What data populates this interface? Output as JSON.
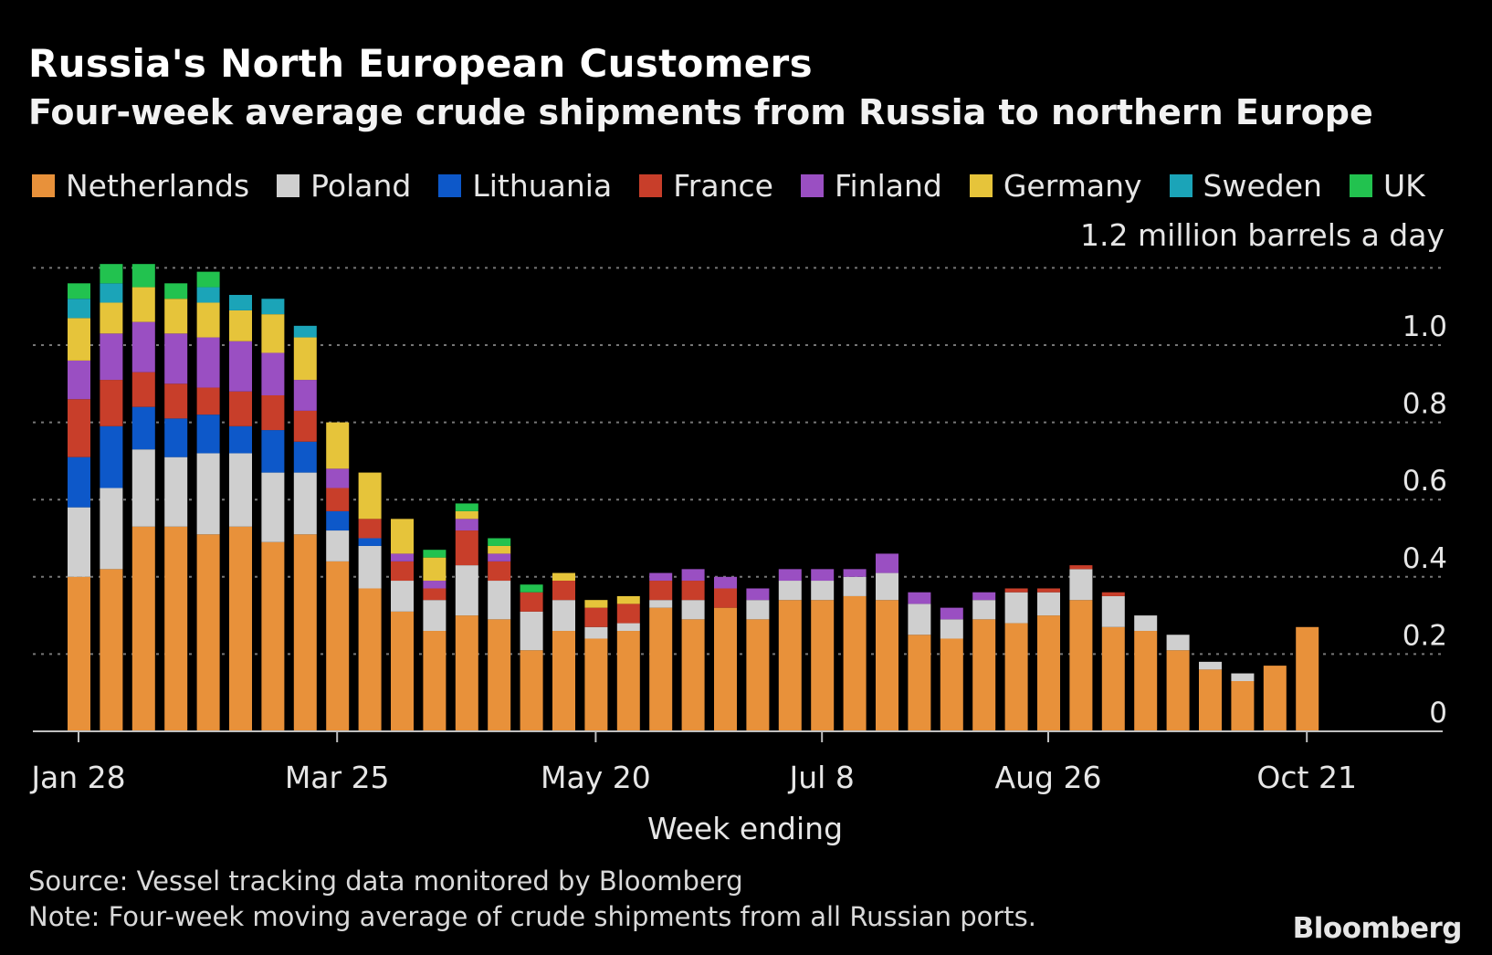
{
  "header": {
    "title": "Russia's North European Customers",
    "subtitle": "Four-week average crude shipments from Russia to northern Europe",
    "unit": "1.2 million barrels a day"
  },
  "legend": [
    {
      "name": "Netherlands",
      "color": "#e8913a"
    },
    {
      "name": "Poland",
      "color": "#cfcfcf"
    },
    {
      "name": "Lithuania",
      "color": "#0d58c9"
    },
    {
      "name": "France",
      "color": "#c83e2a"
    },
    {
      "name": "Finland",
      "color": "#9a4fc2"
    },
    {
      "name": "Germany",
      "color": "#e6c43a"
    },
    {
      "name": "Sweden",
      "color": "#1ba4b8"
    },
    {
      "name": "UK",
      "color": "#22c24f"
    }
  ],
  "footer": {
    "source": "Source: Vessel tracking data monitored by Bloomberg",
    "note": "Note: Four-week moving average of crude shipments from all Russian ports.",
    "logo": "Bloomberg"
  },
  "chart_data": {
    "type": "bar",
    "stacked": true,
    "title": "Russia's North European Customers",
    "subtitle": "Four-week average crude shipments from Russia to northern Europe",
    "xlabel": "Week ending",
    "ylabel": "1.2 million barrels a day",
    "ylim": [
      0,
      1.2
    ],
    "yticks": [
      0,
      0.2,
      0.4,
      0.6,
      0.8,
      1.0
    ],
    "ytick_labels": [
      "0",
      "0.2",
      "0.4",
      "0.6",
      "0.8",
      "1.0"
    ],
    "grid": true,
    "legend_position": "top",
    "x_tick_labels": [
      {
        "label": "Jan 28",
        "index": 0
      },
      {
        "label": "Mar 25",
        "index": 8
      },
      {
        "label": "May 20",
        "index": 16
      },
      {
        "label": "Jul 8",
        "index": 23
      },
      {
        "label": "Aug 26",
        "index": 30
      },
      {
        "label": "Oct 21",
        "index": 38
      }
    ],
    "categories": [
      "1",
      "2",
      "3",
      "4",
      "5",
      "6",
      "7",
      "8",
      "9",
      "10",
      "11",
      "12",
      "13",
      "14",
      "15",
      "16",
      "17",
      "18",
      "19",
      "20",
      "21",
      "22",
      "23",
      "24",
      "25",
      "26",
      "27",
      "28",
      "29",
      "30",
      "31",
      "32",
      "33",
      "34",
      "35",
      "36",
      "37",
      "38",
      "39"
    ],
    "series": [
      {
        "name": "Netherlands",
        "values": [
          0.4,
          0.42,
          0.53,
          0.53,
          0.51,
          0.53,
          0.49,
          0.51,
          0.44,
          0.37,
          0.31,
          0.26,
          0.3,
          0.29,
          0.21,
          0.26,
          0.24,
          0.26,
          0.32,
          0.29,
          0.32,
          0.29,
          0.34,
          0.34,
          0.35,
          0.34,
          0.25,
          0.24,
          0.29,
          0.28,
          0.3,
          0.34,
          0.27,
          0.26,
          0.21,
          0.16,
          0.13,
          0.17,
          0.27
        ]
      },
      {
        "name": "Poland",
        "values": [
          0.18,
          0.21,
          0.2,
          0.18,
          0.21,
          0.19,
          0.18,
          0.16,
          0.08,
          0.11,
          0.08,
          0.08,
          0.13,
          0.1,
          0.1,
          0.08,
          0.03,
          0.02,
          0.02,
          0.05,
          0.0,
          0.05,
          0.05,
          0.05,
          0.05,
          0.07,
          0.08,
          0.05,
          0.05,
          0.08,
          0.06,
          0.08,
          0.08,
          0.04,
          0.04,
          0.02,
          0.02,
          0.0,
          0.0
        ]
      },
      {
        "name": "Lithuania",
        "values": [
          0.13,
          0.16,
          0.11,
          0.1,
          0.1,
          0.07,
          0.11,
          0.08,
          0.05,
          0.02,
          0.0,
          0.0,
          0.0,
          0.0,
          0.0,
          0.0,
          0.0,
          0.0,
          0.0,
          0.0,
          0.0,
          0.0,
          0.0,
          0.0,
          0.0,
          0.0,
          0.0,
          0.0,
          0.0,
          0.0,
          0.0,
          0.0,
          0.0,
          0.0,
          0.0,
          0.0,
          0.0,
          0.0,
          0.0
        ]
      },
      {
        "name": "France",
        "values": [
          0.15,
          0.12,
          0.09,
          0.09,
          0.07,
          0.09,
          0.09,
          0.08,
          0.06,
          0.05,
          0.05,
          0.03,
          0.09,
          0.05,
          0.05,
          0.05,
          0.05,
          0.05,
          0.05,
          0.05,
          0.05,
          0.0,
          0.0,
          0.0,
          0.0,
          0.0,
          0.0,
          0.0,
          0.0,
          0.01,
          0.01,
          0.01,
          0.01,
          0.0,
          0.0,
          0.0,
          0.0,
          0.0,
          0.0
        ]
      },
      {
        "name": "Finland",
        "values": [
          0.1,
          0.12,
          0.13,
          0.13,
          0.13,
          0.13,
          0.11,
          0.08,
          0.05,
          0.0,
          0.02,
          0.02,
          0.03,
          0.02,
          0.0,
          0.0,
          0.0,
          0.0,
          0.02,
          0.03,
          0.03,
          0.03,
          0.03,
          0.03,
          0.02,
          0.05,
          0.03,
          0.03,
          0.02,
          0.0,
          0.0,
          0.0,
          0.0,
          0.0,
          0.0,
          0.0,
          0.0,
          0.0,
          0.0
        ]
      },
      {
        "name": "Germany",
        "values": [
          0.11,
          0.08,
          0.09,
          0.09,
          0.09,
          0.08,
          0.1,
          0.11,
          0.12,
          0.12,
          0.09,
          0.06,
          0.02,
          0.02,
          0.0,
          0.02,
          0.02,
          0.02,
          0.0,
          0.0,
          0.0,
          0.0,
          0.0,
          0.0,
          0.0,
          0.0,
          0.0,
          0.0,
          0.0,
          0.0,
          0.0,
          0.0,
          0.0,
          0.0,
          0.0,
          0.0,
          0.0,
          0.0,
          0.0
        ]
      },
      {
        "name": "Sweden",
        "values": [
          0.05,
          0.05,
          0.0,
          0.0,
          0.04,
          0.04,
          0.04,
          0.03,
          0.0,
          0.0,
          0.0,
          0.0,
          0.0,
          0.0,
          0.0,
          0.0,
          0.0,
          0.0,
          0.0,
          0.0,
          0.0,
          0.0,
          0.0,
          0.0,
          0.0,
          0.0,
          0.0,
          0.0,
          0.0,
          0.0,
          0.0,
          0.0,
          0.0,
          0.0,
          0.0,
          0.0,
          0.0,
          0.0,
          0.0
        ]
      },
      {
        "name": "UK",
        "values": [
          0.04,
          0.05,
          0.06,
          0.04,
          0.04,
          0.0,
          0.0,
          0.0,
          0.0,
          0.0,
          0.0,
          0.02,
          0.02,
          0.02,
          0.02,
          0.0,
          0.0,
          0.0,
          0.0,
          0.0,
          0.0,
          0.0,
          0.0,
          0.0,
          0.0,
          0.0,
          0.0,
          0.0,
          0.0,
          0.0,
          0.0,
          0.0,
          0.0,
          0.0,
          0.0,
          0.0,
          0.0,
          0.0,
          0.0
        ]
      }
    ]
  }
}
